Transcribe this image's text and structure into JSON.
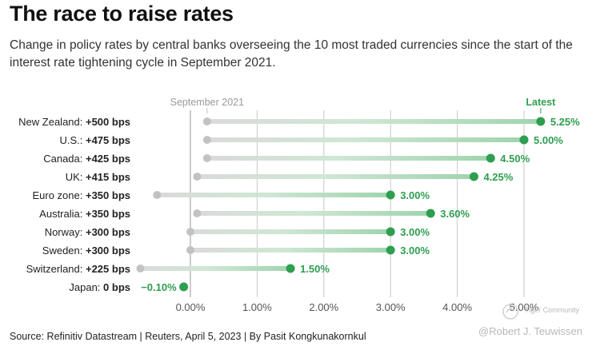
{
  "title": "The race to raise rates",
  "subtitle": "Change in policy rates by central banks overseeing the 10 most traded currencies since the start of the interest rate tightening cycle in September 2021.",
  "source": "Source: Refinitiv Datastream | Reuters, April 5, 2023 | By Pasit Kongkunakornkul",
  "watermark": {
    "community": "Tiger Community",
    "handle": "@Robert J. Teuwissen"
  },
  "colors": {
    "green": "#2e9e4f",
    "green_light": "#9fd4ad",
    "gray_dot": "#c2c2c2",
    "gray_bar": "#dadada",
    "grid": "#c8c8c8",
    "axis_text": "#555555",
    "start_label": "#9a9a9a"
  },
  "chart_data": {
    "type": "dumbbell",
    "title": "The race to raise rates",
    "xlabel": "",
    "ylabel": "",
    "xlim": [
      -0.0075,
      0.0575
    ],
    "x_ticks": [
      0,
      0.01,
      0.02,
      0.03,
      0.04,
      0.05
    ],
    "x_tick_labels": [
      "0.00%",
      "1.00%",
      "2.00%",
      "3.00%",
      "4.00%",
      "5.00%"
    ],
    "start_label": "September 2021",
    "end_label": "Latest",
    "rows": [
      {
        "country": "New Zealand",
        "change": "+500 bps",
        "start": 0.0025,
        "latest": 0.0525,
        "latest_label": "5.25%"
      },
      {
        "country": "U.S.",
        "change": "+475 bps",
        "start": 0.0025,
        "latest": 0.05,
        "latest_label": "5.00%"
      },
      {
        "country": "Canada",
        "change": "+425 bps",
        "start": 0.0025,
        "latest": 0.045,
        "latest_label": "4.50%"
      },
      {
        "country": "UK",
        "change": "+415 bps",
        "start": 0.001,
        "latest": 0.0425,
        "latest_label": "4.25%"
      },
      {
        "country": "Euro zone",
        "change": "+350 bps",
        "start": -0.005,
        "latest": 0.03,
        "latest_label": "3.00%"
      },
      {
        "country": "Australia",
        "change": "+350 bps",
        "start": 0.001,
        "latest": 0.036,
        "latest_label": "3.60%"
      },
      {
        "country": "Norway",
        "change": "+300 bps",
        "start": 0.0,
        "latest": 0.03,
        "latest_label": "3.00%"
      },
      {
        "country": "Sweden",
        "change": "+300 bps",
        "start": 0.0,
        "latest": 0.03,
        "latest_label": "3.00%"
      },
      {
        "country": "Switzerland",
        "change": "+225 bps",
        "start": -0.0075,
        "latest": 0.015,
        "latest_label": "1.50%"
      },
      {
        "country": "Japan",
        "change": "0 bps",
        "start": -0.001,
        "latest": -0.001,
        "latest_label": "−0.10%"
      }
    ]
  }
}
